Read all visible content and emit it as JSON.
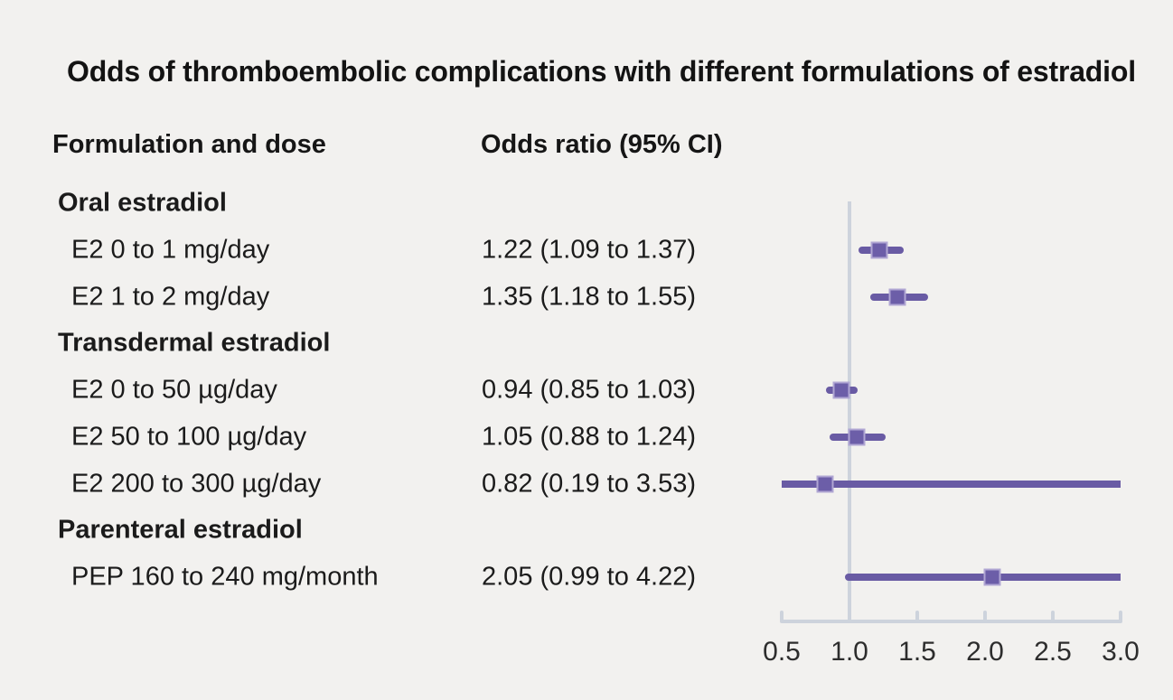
{
  "title": "Odds of thromboembolic complications with different formulations of estradiol",
  "columns": {
    "left": "Formulation and dose",
    "right": "Odds ratio (95% CI)"
  },
  "colors": {
    "background": "#f2f1ef",
    "text": "#1b1b1b",
    "axis_gray": "#cdd3dc",
    "ci_line_purple": "#695ba4",
    "marker_fill_purple": "#6c5ea8",
    "marker_border_lavender": "#b0a6d3"
  },
  "chart_data": {
    "type": "forest",
    "title": "Odds of thromboembolic complications with different formulations of estradiol",
    "xlabel": "",
    "ylabel": "",
    "xlim": [
      0.5,
      3.0
    ],
    "reference_value": 1.0,
    "tick_values": [
      0.5,
      1.0,
      1.5,
      2.0,
      2.5,
      3.0
    ],
    "tick_labels": [
      "0.5",
      "1.0",
      "1.5",
      "2.0",
      "2.5",
      "3.0"
    ],
    "grid": false,
    "legend": "none",
    "rows": [
      {
        "type": "section",
        "label": "Oral estradiol"
      },
      {
        "type": "item",
        "label": "E2 0 to 1 mg/day",
        "or_text": "1.22 (1.09 to 1.37)",
        "or": 1.22,
        "ci_low": 1.09,
        "ci_high": 1.37
      },
      {
        "type": "item",
        "label": "E2 1 to 2 mg/day",
        "or_text": "1.35 (1.18 to 1.55)",
        "or": 1.35,
        "ci_low": 1.18,
        "ci_high": 1.55
      },
      {
        "type": "section",
        "label": "Transdermal estradiol"
      },
      {
        "type": "item",
        "label": "E2 0 to 50 µg/day",
        "or_text": "0.94 (0.85 to 1.03)",
        "or": 0.94,
        "ci_low": 0.85,
        "ci_high": 1.03
      },
      {
        "type": "item",
        "label": "E2 50 to 100 µg/day",
        "or_text": "1.05 (0.88 to 1.24)",
        "or": 1.05,
        "ci_low": 0.88,
        "ci_high": 1.24
      },
      {
        "type": "item",
        "label": "E2 200 to 300 µg/day",
        "or_text": "0.82 (0.19 to 3.53)",
        "or": 0.82,
        "ci_low": 0.19,
        "ci_high": 3.53
      },
      {
        "type": "section",
        "label": "Parenteral estradiol"
      },
      {
        "type": "item",
        "label": "PEP 160 to 240 mg/month",
        "or_text": "2.05 (0.99 to 4.22)",
        "or": 2.05,
        "ci_low": 0.99,
        "ci_high": 4.22
      }
    ]
  }
}
